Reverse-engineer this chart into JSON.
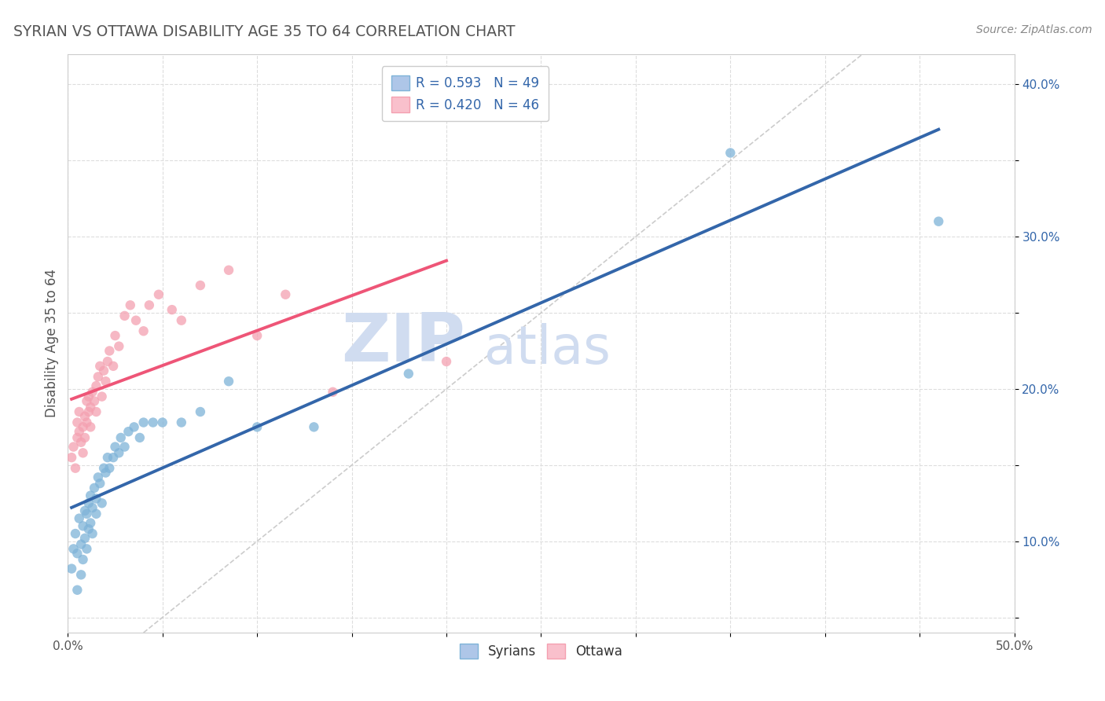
{
  "title": "SYRIAN VS OTTAWA DISABILITY AGE 35 TO 64 CORRELATION CHART",
  "source": "Source: ZipAtlas.com",
  "ylabel": "Disability Age 35 to 64",
  "xlim": [
    0.0,
    0.5
  ],
  "ylim": [
    0.04,
    0.42
  ],
  "xticks": [
    0.0,
    0.05,
    0.1,
    0.15,
    0.2,
    0.25,
    0.3,
    0.35,
    0.4,
    0.45,
    0.5
  ],
  "xticklabels": [
    "0.0%",
    "",
    "",
    "",
    "",
    "",
    "",
    "",
    "",
    "",
    "50.0%"
  ],
  "yticks": [
    0.05,
    0.1,
    0.15,
    0.2,
    0.25,
    0.3,
    0.35,
    0.4
  ],
  "yticklabels": [
    "",
    "10.0%",
    "",
    "20.0%",
    "",
    "30.0%",
    "",
    "40.0%"
  ],
  "syrians_R": 0.593,
  "syrians_N": 49,
  "ottawa_R": 0.42,
  "ottawa_N": 46,
  "blue_color": "#7EB3D8",
  "pink_color": "#F4A0B0",
  "blue_line_color": "#3366AA",
  "pink_line_color": "#EE5577",
  "ref_line_color": "#CCCCCC",
  "grid_color": "#DDDDDD",
  "title_color": "#555555",
  "watermark_color": "#D0DCF0",
  "syrians_x": [
    0.002,
    0.003,
    0.004,
    0.005,
    0.005,
    0.006,
    0.007,
    0.007,
    0.008,
    0.008,
    0.009,
    0.009,
    0.01,
    0.01,
    0.011,
    0.011,
    0.012,
    0.012,
    0.013,
    0.013,
    0.014,
    0.015,
    0.015,
    0.016,
    0.017,
    0.018,
    0.019,
    0.02,
    0.021,
    0.022,
    0.024,
    0.025,
    0.027,
    0.028,
    0.03,
    0.032,
    0.035,
    0.038,
    0.04,
    0.045,
    0.05,
    0.06,
    0.07,
    0.085,
    0.1,
    0.13,
    0.18,
    0.35,
    0.46
  ],
  "syrians_y": [
    0.082,
    0.095,
    0.105,
    0.068,
    0.092,
    0.115,
    0.078,
    0.098,
    0.088,
    0.11,
    0.102,
    0.12,
    0.095,
    0.118,
    0.108,
    0.125,
    0.112,
    0.13,
    0.105,
    0.122,
    0.135,
    0.128,
    0.118,
    0.142,
    0.138,
    0.125,
    0.148,
    0.145,
    0.155,
    0.148,
    0.155,
    0.162,
    0.158,
    0.168,
    0.162,
    0.172,
    0.175,
    0.168,
    0.178,
    0.178,
    0.178,
    0.178,
    0.185,
    0.205,
    0.175,
    0.175,
    0.21,
    0.355,
    0.31
  ],
  "ottawa_x": [
    0.002,
    0.003,
    0.004,
    0.005,
    0.005,
    0.006,
    0.006,
    0.007,
    0.008,
    0.008,
    0.009,
    0.009,
    0.01,
    0.01,
    0.011,
    0.011,
    0.012,
    0.012,
    0.013,
    0.014,
    0.015,
    0.015,
    0.016,
    0.017,
    0.018,
    0.019,
    0.02,
    0.021,
    0.022,
    0.024,
    0.025,
    0.027,
    0.03,
    0.033,
    0.036,
    0.04,
    0.043,
    0.048,
    0.055,
    0.06,
    0.07,
    0.085,
    0.1,
    0.115,
    0.14,
    0.2
  ],
  "ottawa_y": [
    0.155,
    0.162,
    0.148,
    0.168,
    0.178,
    0.172,
    0.185,
    0.165,
    0.158,
    0.175,
    0.182,
    0.168,
    0.178,
    0.192,
    0.185,
    0.195,
    0.175,
    0.188,
    0.198,
    0.192,
    0.202,
    0.185,
    0.208,
    0.215,
    0.195,
    0.212,
    0.205,
    0.218,
    0.225,
    0.215,
    0.235,
    0.228,
    0.248,
    0.255,
    0.245,
    0.238,
    0.255,
    0.262,
    0.252,
    0.245,
    0.268,
    0.278,
    0.235,
    0.262,
    0.198,
    0.218
  ]
}
